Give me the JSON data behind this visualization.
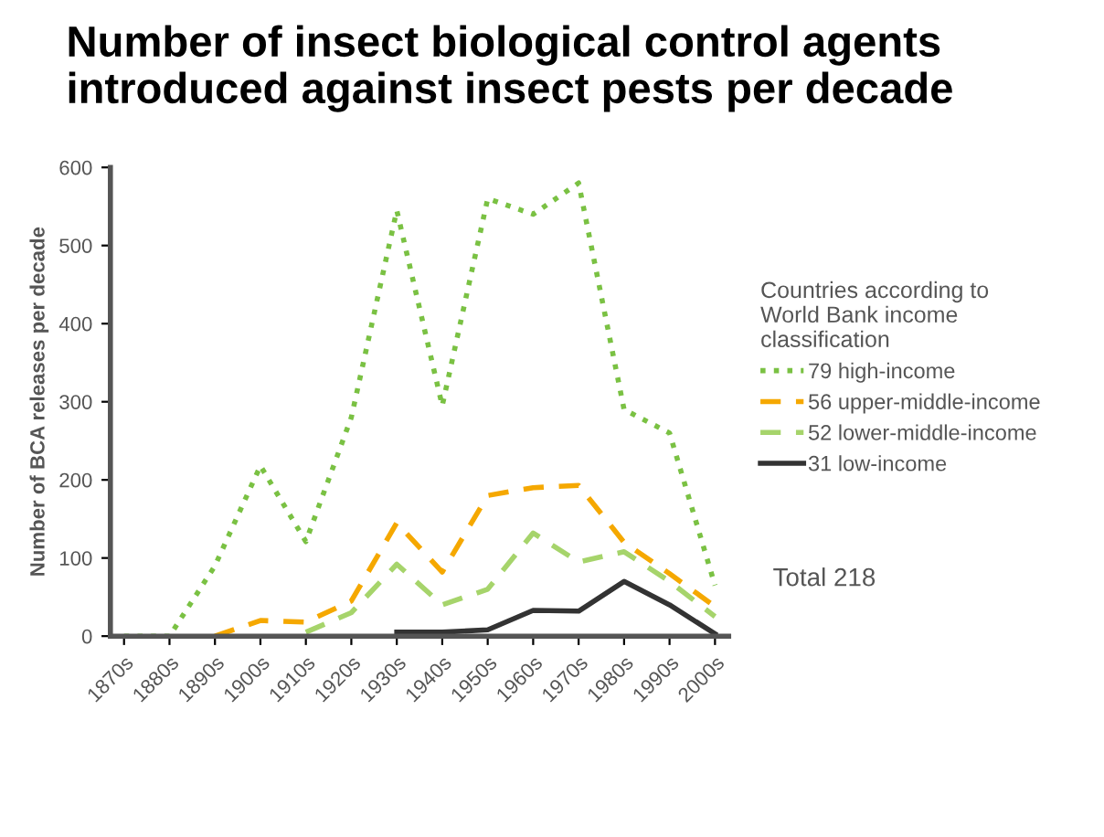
{
  "chart_data": {
    "type": "line",
    "title": "Number of insect biological control agents\nintroduced against insect pests per decade",
    "ylabel": "Number of BCA releases per decade",
    "legend_title": "Countries according to\nWorld Bank income\nclassification",
    "categories": [
      "1870s",
      "1880s",
      "1890s",
      "1900s",
      "1910s",
      "1920s",
      "1930s",
      "1940s",
      "1950s",
      "1960s",
      "1970s",
      "1980s",
      "1990s",
      "2000s"
    ],
    "series": [
      {
        "name": "79 high-income",
        "color": "#7ac143",
        "line_style": "dotted",
        "values": [
          0,
          0,
          90,
          218,
          121,
          280,
          545,
          295,
          560,
          540,
          580,
          290,
          260,
          65
        ]
      },
      {
        "name": "56 upper-middle-income",
        "color": "#f5a800",
        "line_style": "dashed",
        "values": [
          null,
          null,
          0,
          20,
          18,
          45,
          145,
          82,
          180,
          190,
          193,
          120,
          80,
          38
        ]
      },
      {
        "name": "52 lower-middle-income",
        "color": "#a6d46b",
        "line_style": "dashed",
        "values": [
          null,
          null,
          null,
          null,
          5,
          30,
          92,
          40,
          60,
          132,
          95,
          108,
          70,
          25
        ]
      },
      {
        "name": "31 low-income",
        "color": "#333333",
        "line_style": "solid",
        "values": [
          null,
          null,
          null,
          null,
          null,
          null,
          5,
          5,
          8,
          33,
          32,
          70,
          40,
          3
        ]
      }
    ],
    "ylim": [
      0,
      600
    ],
    "yticks": [
      0,
      100,
      200,
      300,
      400,
      500,
      600
    ],
    "grid": false,
    "legend": "right",
    "marker": "none",
    "annotations": [
      "Total 218"
    ]
  }
}
